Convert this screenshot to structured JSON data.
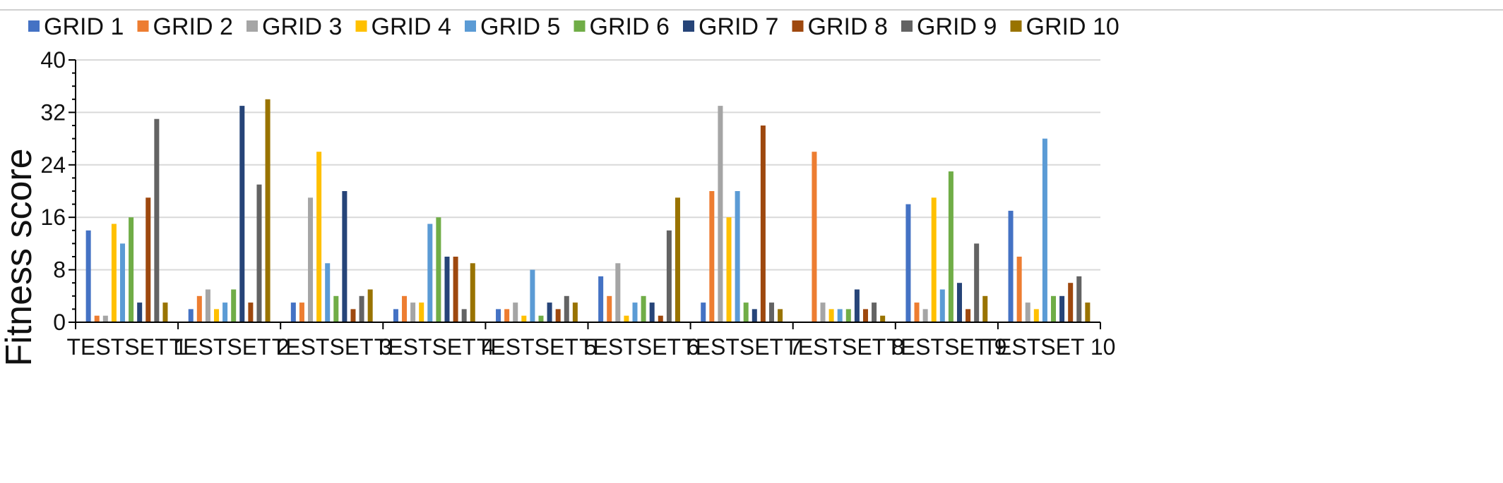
{
  "chart_data": {
    "type": "bar",
    "title": "",
    "xlabel": "",
    "ylabel": "Fitness score",
    "ylim": [
      0,
      40
    ],
    "yticks": [
      0,
      8,
      16,
      24,
      32,
      40
    ],
    "grid": true,
    "legend_position": "top",
    "categories": [
      "TESTSET 1",
      "TESTSET 2",
      "TESTSET 3",
      "TESTSET 4",
      "TESTSET 5",
      "TESTSET 6",
      "TESTSET 7",
      "TESTSET 8",
      "TESTSET 9",
      "TESTSET 10"
    ],
    "series": [
      {
        "name": "GRID 1",
        "color": "#4472C4",
        "values": [
          14,
          2,
          3,
          2,
          2,
          7,
          3,
          0,
          18,
          17
        ]
      },
      {
        "name": "GRID 2",
        "color": "#ED7D31",
        "values": [
          1,
          4,
          3,
          4,
          2,
          4,
          20,
          26,
          3,
          10
        ]
      },
      {
        "name": "GRID 3",
        "color": "#A5A5A5",
        "values": [
          1,
          5,
          19,
          3,
          3,
          9,
          33,
          3,
          2,
          3
        ]
      },
      {
        "name": "GRID 4",
        "color": "#FFC000",
        "values": [
          15,
          2,
          26,
          3,
          1,
          1,
          16,
          2,
          19,
          2
        ]
      },
      {
        "name": "GRID 5",
        "color": "#5B9BD5",
        "values": [
          12,
          3,
          9,
          15,
          8,
          3,
          20,
          2,
          5,
          28
        ]
      },
      {
        "name": "GRID 6",
        "color": "#70AD47",
        "values": [
          16,
          5,
          4,
          16,
          1,
          4,
          3,
          2,
          23,
          4
        ]
      },
      {
        "name": "GRID 7",
        "color": "#264478",
        "values": [
          3,
          33,
          20,
          10,
          3,
          3,
          2,
          5,
          6,
          4
        ]
      },
      {
        "name": "GRID 8",
        "color": "#9E480E",
        "values": [
          19,
          3,
          2,
          10,
          2,
          1,
          30,
          2,
          2,
          6
        ]
      },
      {
        "name": "GRID 9",
        "color": "#636363",
        "values": [
          31,
          21,
          4,
          2,
          4,
          14,
          3,
          3,
          12,
          7
        ]
      },
      {
        "name": "GRID 10",
        "color": "#997300",
        "values": [
          3,
          34,
          5,
          9,
          3,
          19,
          2,
          1,
          4,
          3
        ]
      }
    ]
  }
}
